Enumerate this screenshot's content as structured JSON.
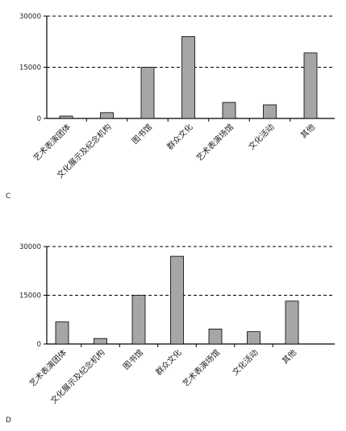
{
  "chart_data": [
    {
      "type": "bar",
      "panel_label": "C",
      "categories": [
        "艺术表演团体",
        "文化展示及纪念机构",
        "图书馆",
        "群众文化",
        "艺术表演场馆",
        "文化活动",
        "其他"
      ],
      "values": [
        700,
        1700,
        15000,
        24000,
        4700,
        4000,
        19200
      ],
      "yticks": [
        "0",
        "15000",
        "30000"
      ],
      "ylim": [
        0,
        30000
      ],
      "grid": "dashed horizontal reference lines at 15000 and 30000",
      "bar_color": "#a6a6a6",
      "bar_edge_color": "#000000"
    },
    {
      "type": "bar",
      "panel_label": "D",
      "categories": [
        "艺术表演团体",
        "文化展示及纪念机构",
        "图书馆",
        "群众文化",
        "艺术表演场馆",
        "文化活动",
        "其他"
      ],
      "values": [
        6800,
        1700,
        15000,
        27000,
        4600,
        3800,
        13200
      ],
      "yticks": [
        "0",
        "15000",
        "30000"
      ],
      "ylim": [
        0,
        30000
      ],
      "grid": "dashed horizontal reference lines at 15000 and 30000",
      "bar_color": "#a6a6a6",
      "bar_edge_color": "#000000"
    }
  ]
}
